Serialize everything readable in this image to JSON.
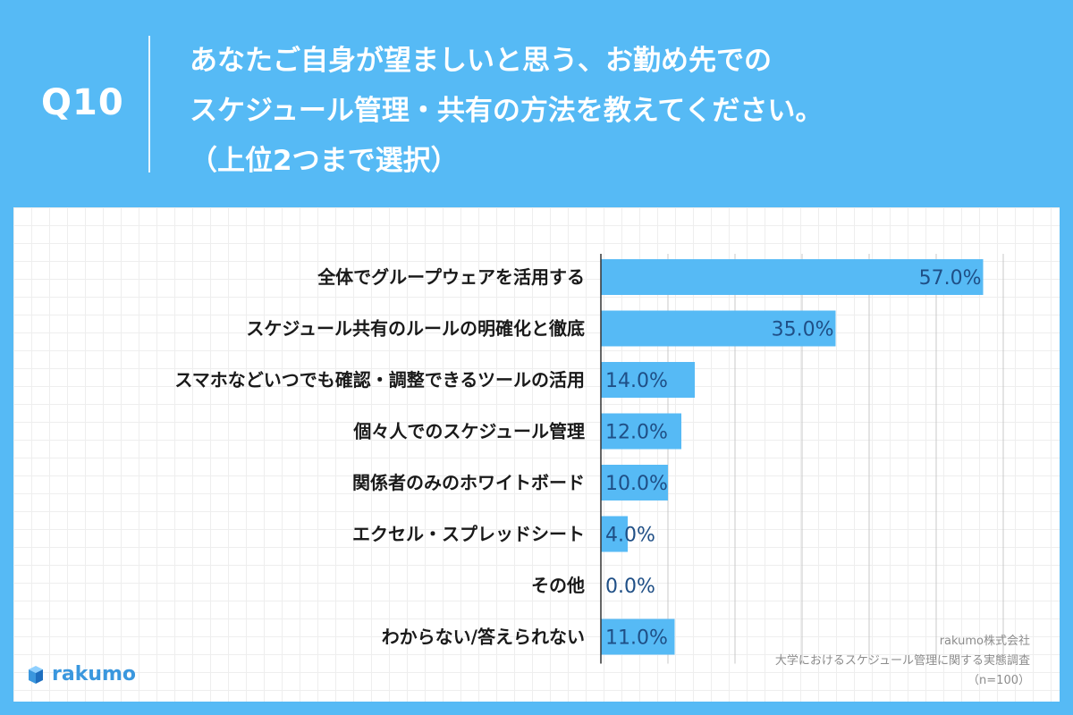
{
  "header": {
    "question_number": "Q10",
    "question_lines": [
      "あなたご自身が望ましいと思う、お勤め先での",
      "スケジュール管理・共有の方法を教えてください。",
      "（上位2つまで選択）"
    ]
  },
  "chart_data": {
    "type": "bar",
    "orientation": "horizontal",
    "categories": [
      "全体でグループウェアを活用する",
      "スケジュール共有のルールの明確化と徹底",
      "スマホなどいつでも確認・調整できるツールの活用",
      "個々人でのスケジュール管理",
      "関係者のみのホワイトボード",
      "エクセル・スプレッドシート",
      "その他",
      "わからない/答えられない"
    ],
    "values": [
      57.0,
      35.0,
      14.0,
      12.0,
      10.0,
      4.0,
      0.0,
      11.0
    ],
    "value_labels": [
      "57.0%",
      "35.0%",
      "14.0%",
      "12.0%",
      "10.0%",
      "4.0%",
      "0.0%",
      "11.0%"
    ],
    "xlim": [
      0,
      60
    ],
    "grid": true,
    "bar_color": "#56baf5",
    "value_label_color": "#1f4f86"
  },
  "footer": {
    "logo_text": "rakumo",
    "credit_lines": [
      "rakumo株式会社",
      "大学におけるスケジュール管理に関する実態調査",
      "（n=100）"
    ]
  },
  "colors": {
    "background": "#56baf5",
    "accent": "#3a97de"
  }
}
